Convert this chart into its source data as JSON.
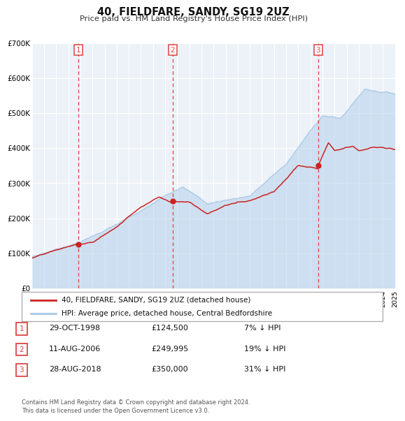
{
  "title": "40, FIELDFARE, SANDY, SG19 2UZ",
  "subtitle": "Price paid vs. HM Land Registry's House Price Index (HPI)",
  "hpi_label": "HPI: Average price, detached house, Central Bedfordshire",
  "property_label": "40, FIELDFARE, SANDY, SG19 2UZ (detached house)",
  "hpi_color": "#a8c8e8",
  "property_color": "#cc2222",
  "sale_color": "#cc2222",
  "vline_color": "#dd4444",
  "plot_bg": "#edf2f8",
  "grid_color": "#ffffff",
  "ylim": [
    0,
    700000
  ],
  "yticks": [
    0,
    100000,
    200000,
    300000,
    400000,
    500000,
    600000,
    700000
  ],
  "ytick_labels": [
    "£0",
    "£100K",
    "£200K",
    "£300K",
    "£400K",
    "£500K",
    "£600K",
    "£700K"
  ],
  "xlim_start": 1995,
  "xlim_end": 2025,
  "sales": [
    {
      "num": 1,
      "date_num": 1998.83,
      "price": 124500,
      "label": "29-OCT-1998",
      "price_str": "£124,500",
      "hpi_str": "7% ↓ HPI"
    },
    {
      "num": 2,
      "date_num": 2006.61,
      "price": 249995,
      "label": "11-AUG-2006",
      "price_str": "£249,995",
      "hpi_str": "19% ↓ HPI"
    },
    {
      "num": 3,
      "date_num": 2018.65,
      "price": 350000,
      "label": "28-AUG-2018",
      "price_str": "£350,000",
      "hpi_str": "31% ↓ HPI"
    }
  ],
  "footer": "Contains HM Land Registry data © Crown copyright and database right 2024.\nThis data is licensed under the Open Government Licence v3.0."
}
